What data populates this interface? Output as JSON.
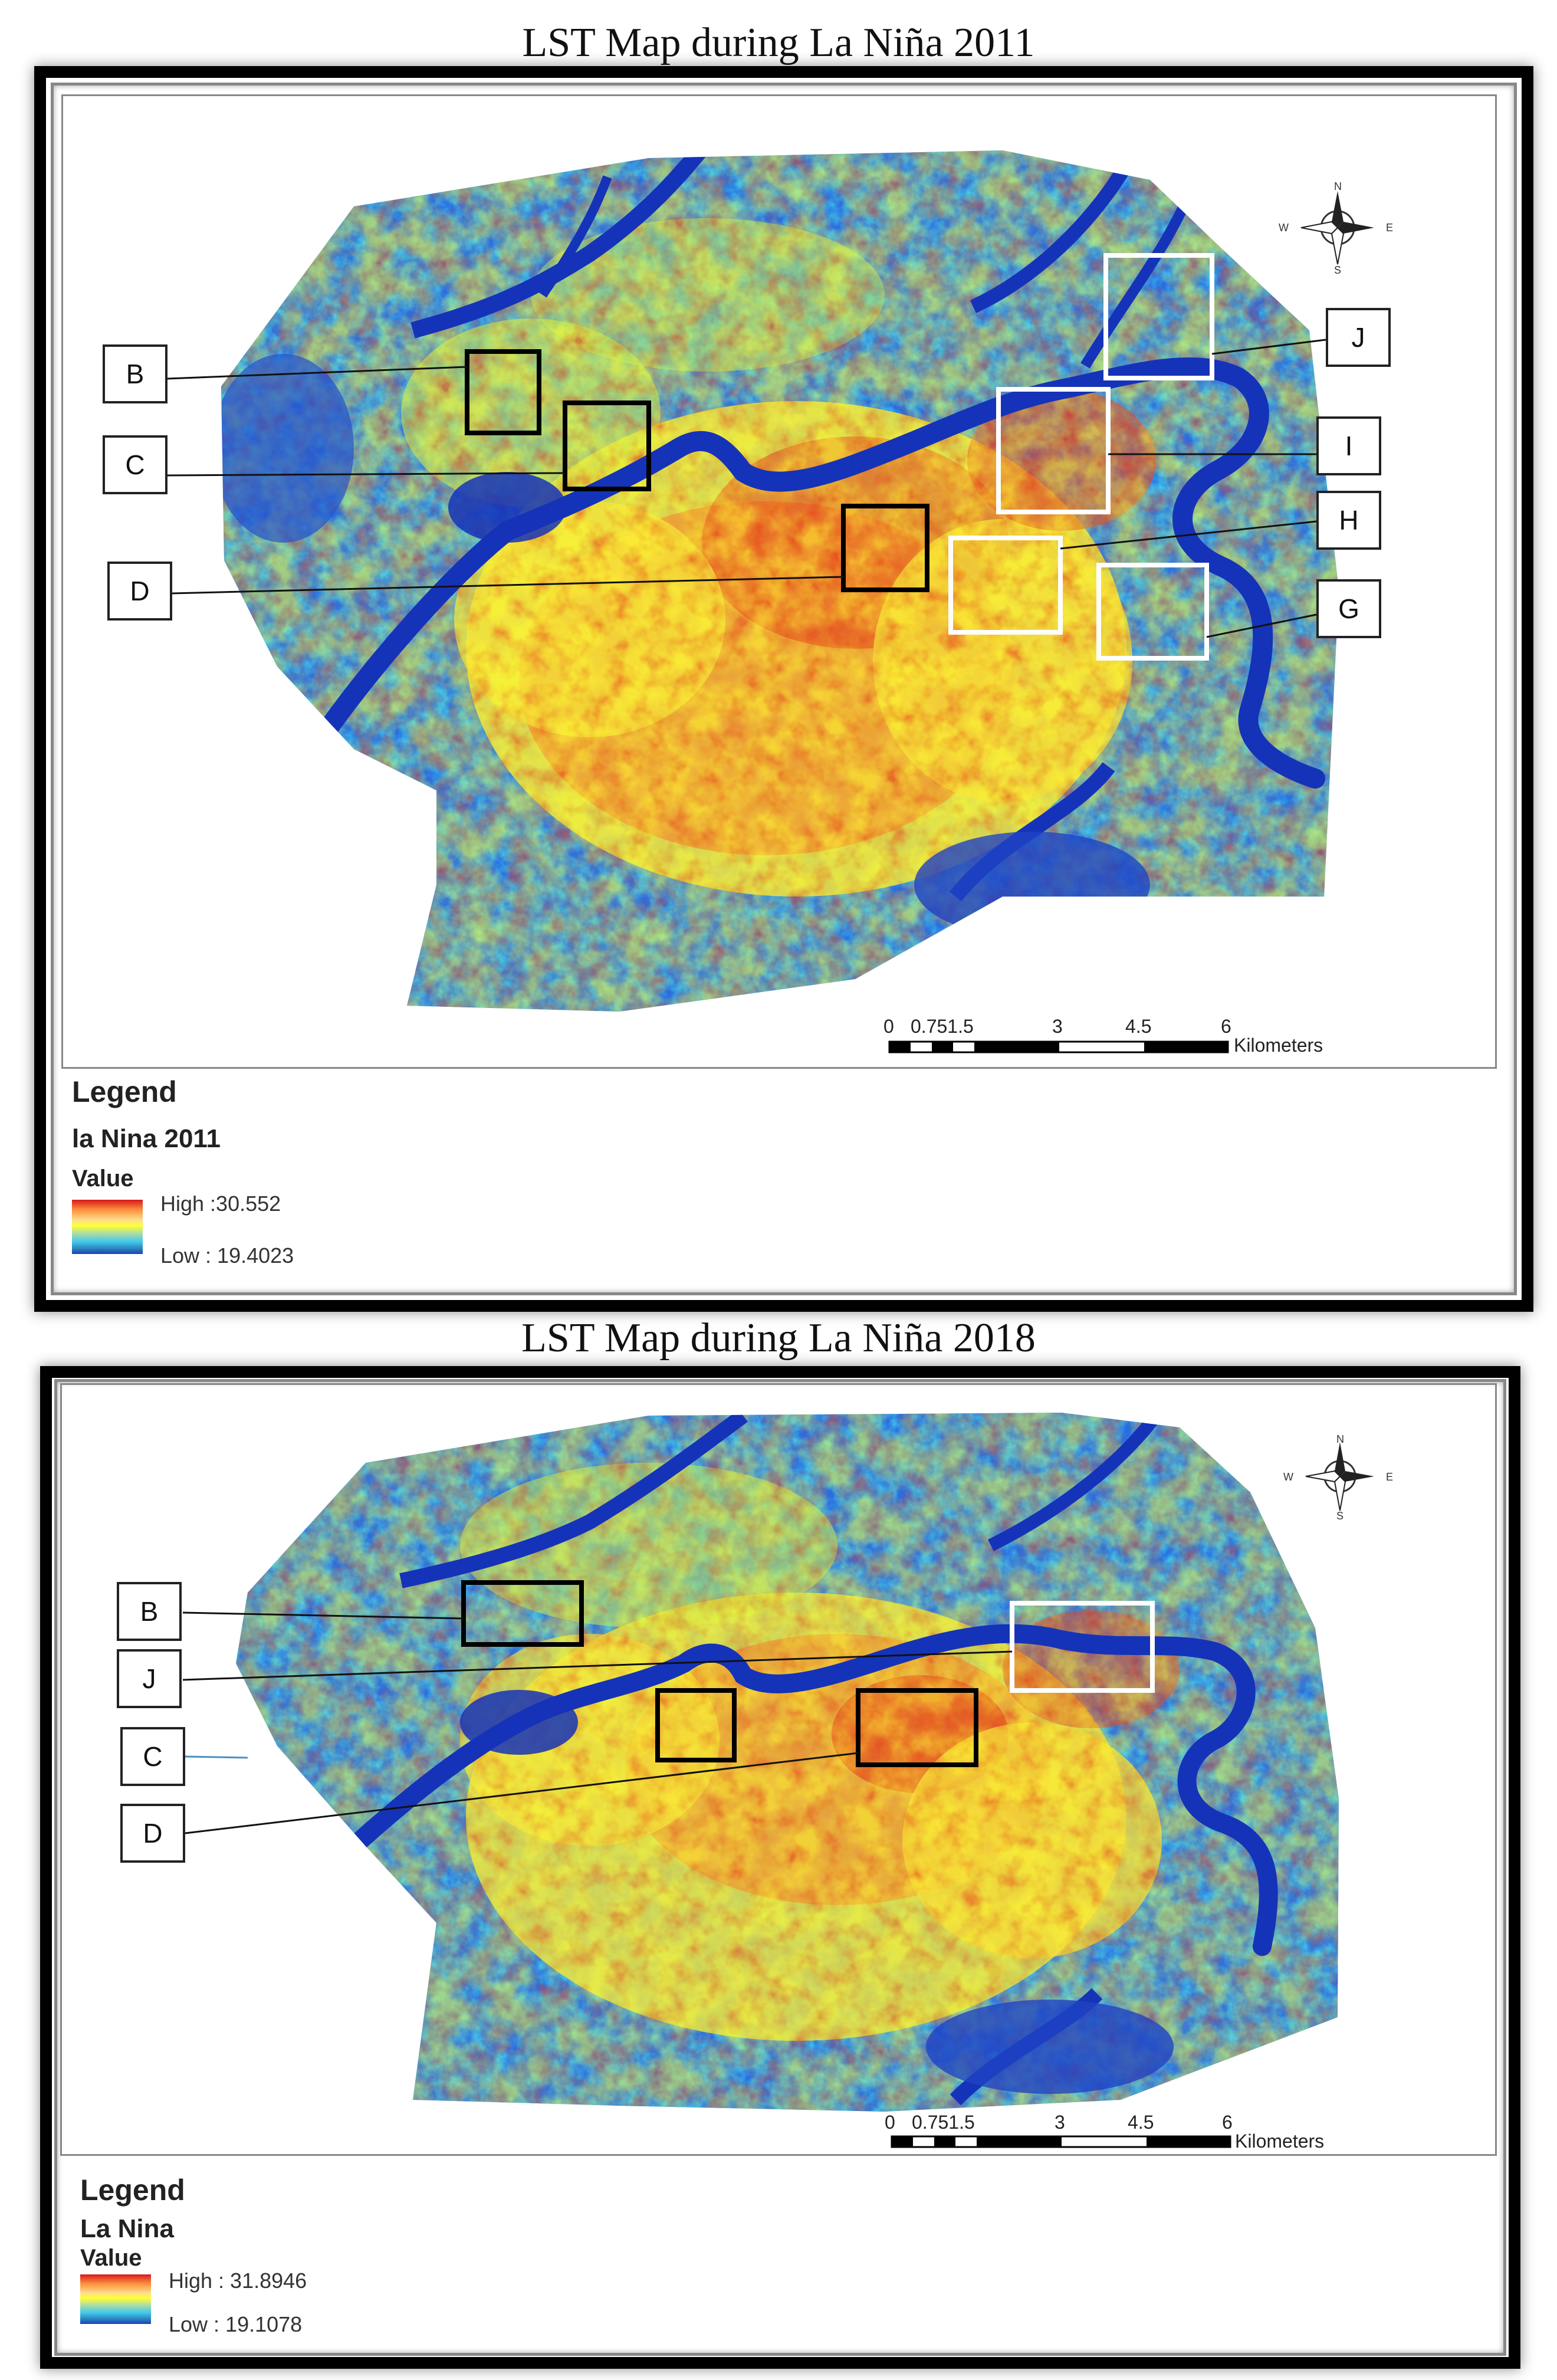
{
  "panels": [
    {
      "title": "LST Map during La Niña 2011",
      "legend": {
        "heading": "Legend",
        "layer": "la Nina 2011",
        "field": "Value",
        "high": "High :30.552",
        "low": "Low : 19.4023"
      },
      "callouts": [
        "B",
        "C",
        "D",
        "J",
        "I",
        "H",
        "G"
      ],
      "scalebar": {
        "ticks": [
          "0",
          "0.751.5",
          "3",
          "4.5",
          "6"
        ],
        "unit": "Kilometers"
      },
      "compass": {
        "n": "N",
        "s": "S",
        "e": "E",
        "w": "W"
      }
    },
    {
      "title": "LST Map during La Niña 2018",
      "legend": {
        "heading": "Legend",
        "layer": "La Nina",
        "field": "Value",
        "high": "High : 31.8946",
        "low": "Low : 19.1078"
      },
      "callouts": [
        "B",
        "J",
        "C",
        "D"
      ],
      "scalebar": {
        "ticks": [
          "0",
          "0.751.5",
          "3",
          "4.5",
          "6"
        ],
        "unit": "Kilometers"
      },
      "compass": {
        "n": "N",
        "s": "S",
        "e": "E",
        "w": "W"
      }
    }
  ],
  "colors": {
    "high": "#d7191c",
    "mid": "#ffff33",
    "low": "#1a3fbf",
    "water": "#1533b8"
  }
}
